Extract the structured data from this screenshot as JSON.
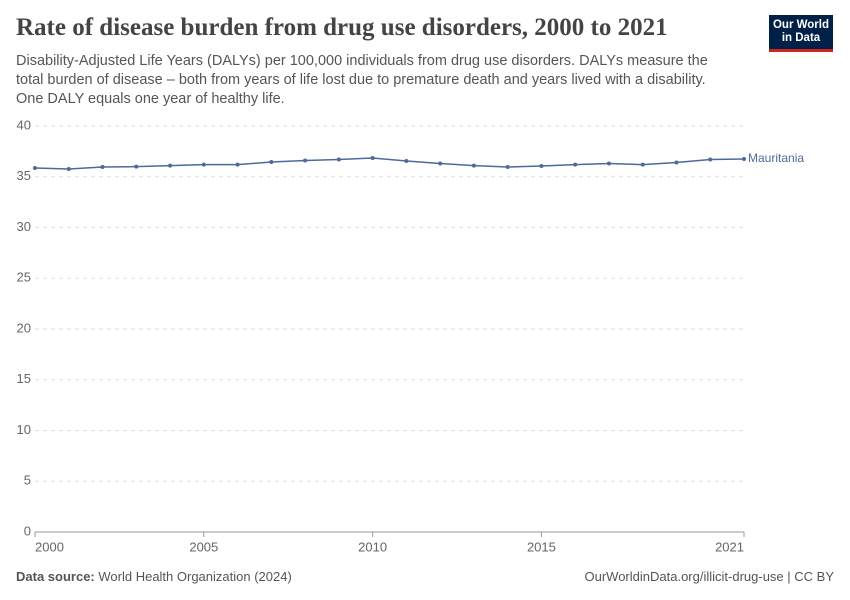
{
  "chart_data": {
    "type": "line",
    "title": "Rate of disease burden from drug use disorders, 2000 to 2021",
    "subtitle": "Disability-Adjusted Life Years (DALYs) per 100,000 individuals from drug use disorders. DALYs measure the total burden of disease – both from years of life lost due to premature death and years lived with a disability. One DALY equals one year of healthy life.",
    "x": [
      2000,
      2001,
      2002,
      2003,
      2004,
      2005,
      2006,
      2007,
      2008,
      2009,
      2010,
      2011,
      2012,
      2013,
      2014,
      2015,
      2016,
      2017,
      2018,
      2019,
      2020,
      2021
    ],
    "series": [
      {
        "name": "Mauritania",
        "color": "#4c6a9c",
        "values": [
          35.86,
          35.76,
          35.96,
          36.0,
          36.1,
          36.2,
          36.2,
          36.45,
          36.6,
          36.7,
          36.85,
          36.55,
          36.3,
          36.1,
          35.96,
          36.06,
          36.2,
          36.3,
          36.2,
          36.4,
          36.7,
          36.75
        ]
      }
    ],
    "xlim": [
      2000,
      2021
    ],
    "xticks": [
      2000,
      2005,
      2010,
      2015,
      2021
    ],
    "ylim": [
      0,
      40
    ],
    "yticks": [
      0,
      5,
      10,
      15,
      20,
      25,
      30,
      35,
      40
    ],
    "grid": true,
    "logo": [
      "Our World",
      "in Data"
    ],
    "source_label": "Data source:",
    "source": "World Health Organization (2024)",
    "url": "OurWorldinData.org/illicit-drug-use | CC BY"
  }
}
